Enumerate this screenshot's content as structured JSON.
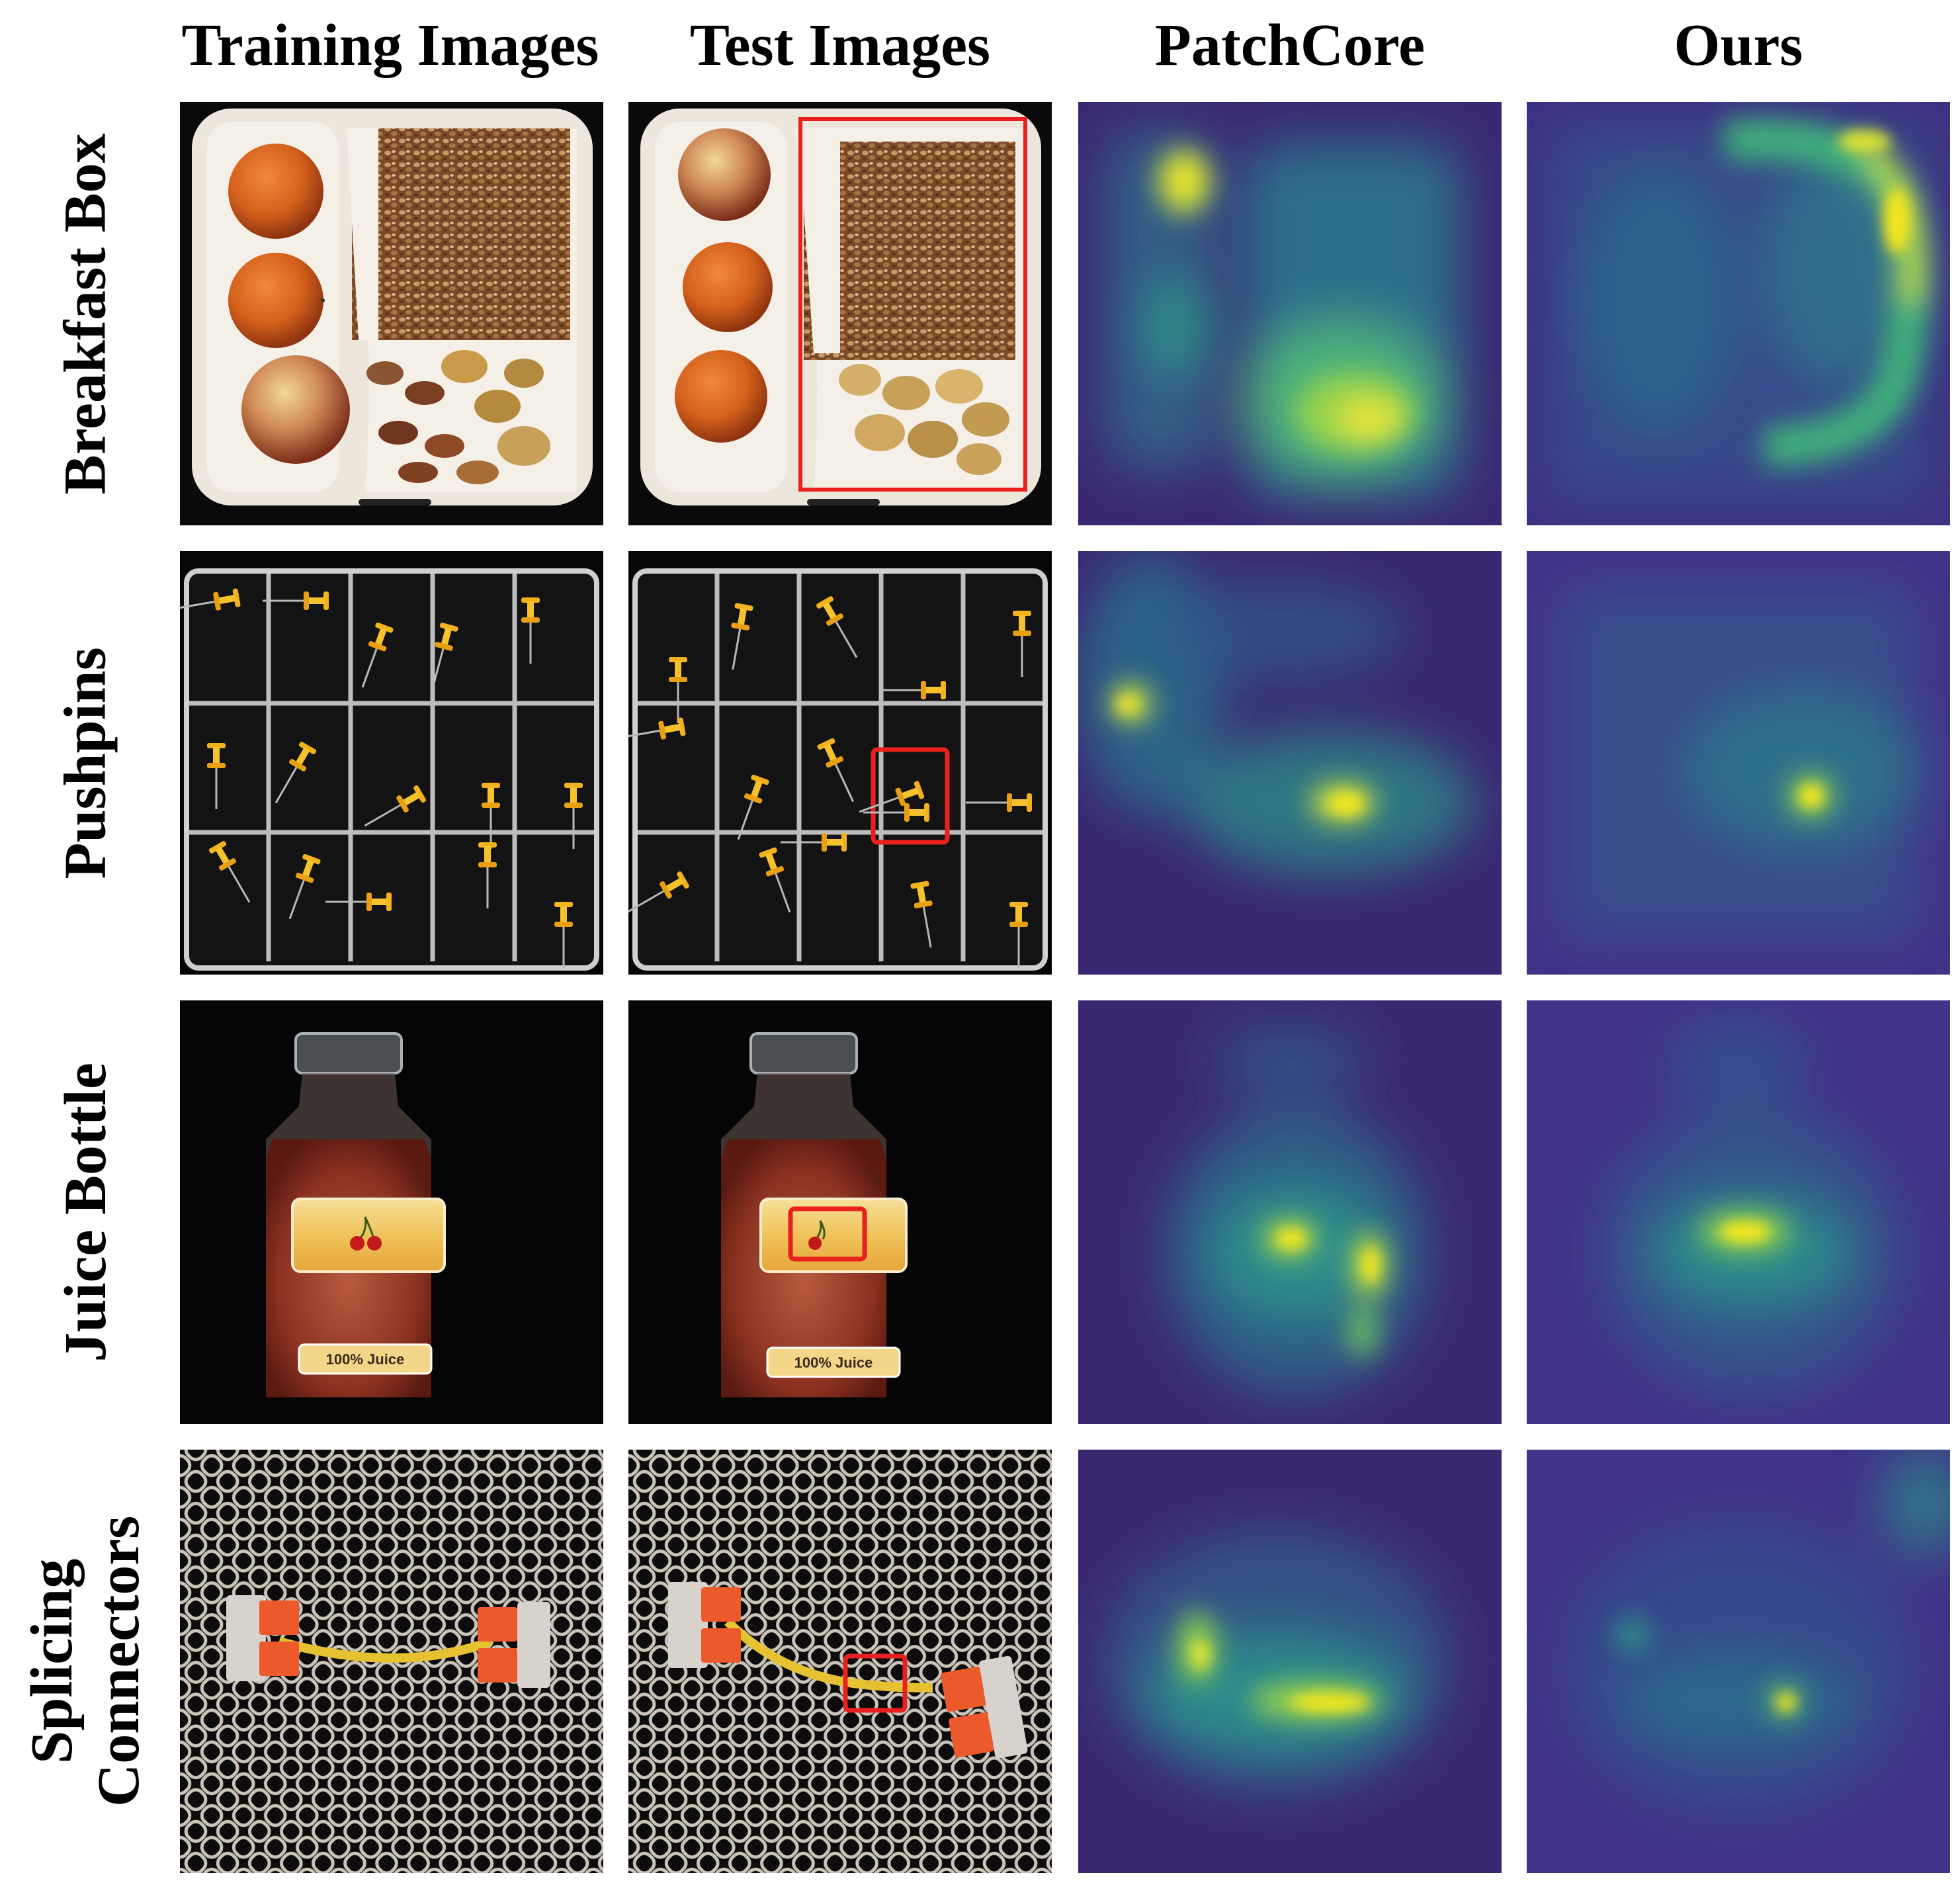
{
  "columns": {
    "training": "Training Images",
    "test": "Test Images",
    "patchcore": "PatchCore",
    "ours": "Ours"
  },
  "rows": [
    {
      "label": [
        "Breakfast Box"
      ]
    },
    {
      "label": [
        "Pushpins"
      ]
    },
    {
      "label": [
        "Juice Bottle"
      ]
    },
    {
      "label": [
        "Splicing",
        "Connectors"
      ]
    }
  ],
  "juice_label_text": "100% Juice",
  "colors": {
    "anomaly_box": "#e8201e",
    "heat_low": "#3b2872",
    "heat_mid": "#21908d",
    "heat_high": "#f5e61e"
  }
}
